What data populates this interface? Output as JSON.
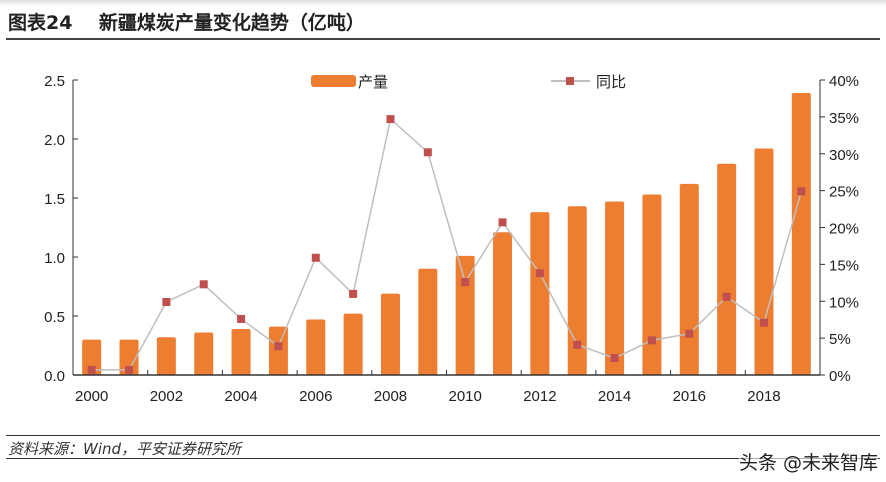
{
  "header": {
    "title": "图表24    新疆煤炭产量变化趋势（亿吨）"
  },
  "footer": {
    "source": "资料来源：Wind，平安证券研究所",
    "watermark": "头条 @未来智库"
  },
  "chart_data": {
    "type": "bar+line",
    "title": "新疆煤炭产量变化趋势（亿吨）",
    "categories": [
      "2000",
      "2001",
      "2002",
      "2003",
      "2004",
      "2005",
      "2006",
      "2007",
      "2008",
      "2009",
      "2010",
      "2011",
      "2012",
      "2013",
      "2014",
      "2015",
      "2016",
      "2017",
      "2018",
      "2019"
    ],
    "x_tick_labels": [
      "2000",
      "2002",
      "2004",
      "2006",
      "2008",
      "2010",
      "2012",
      "2014",
      "2016",
      "2018"
    ],
    "series": [
      {
        "name": "产量",
        "type": "bar",
        "axis": "left",
        "color": "#ED7D31",
        "values": [
          0.3,
          0.3,
          0.32,
          0.36,
          0.39,
          0.41,
          0.47,
          0.52,
          0.69,
          0.9,
          1.01,
          1.21,
          1.38,
          1.43,
          1.47,
          1.53,
          1.62,
          1.79,
          1.92,
          2.39
        ]
      },
      {
        "name": "同比",
        "type": "line",
        "axis": "right",
        "color": "#C0504D",
        "line_color": "#BFBFBF",
        "values": [
          0.7,
          0.7,
          9.9,
          12.3,
          7.6,
          3.9,
          15.9,
          11.0,
          34.7,
          30.2,
          12.6,
          20.7,
          13.8,
          4.1,
          2.3,
          4.7,
          5.6,
          10.6,
          7.1,
          24.9
        ]
      }
    ],
    "left_axis": {
      "ylim": [
        0,
        2.5
      ],
      "ticks": [
        "0.0",
        "0.5",
        "1.0",
        "1.5",
        "2.0",
        "2.5"
      ]
    },
    "right_axis": {
      "ylim": [
        0,
        40
      ],
      "ticks": [
        "0%",
        "5%",
        "10%",
        "15%",
        "20%",
        "25%",
        "30%",
        "35%",
        "40%"
      ]
    },
    "legend": "top-center",
    "grid": false
  }
}
